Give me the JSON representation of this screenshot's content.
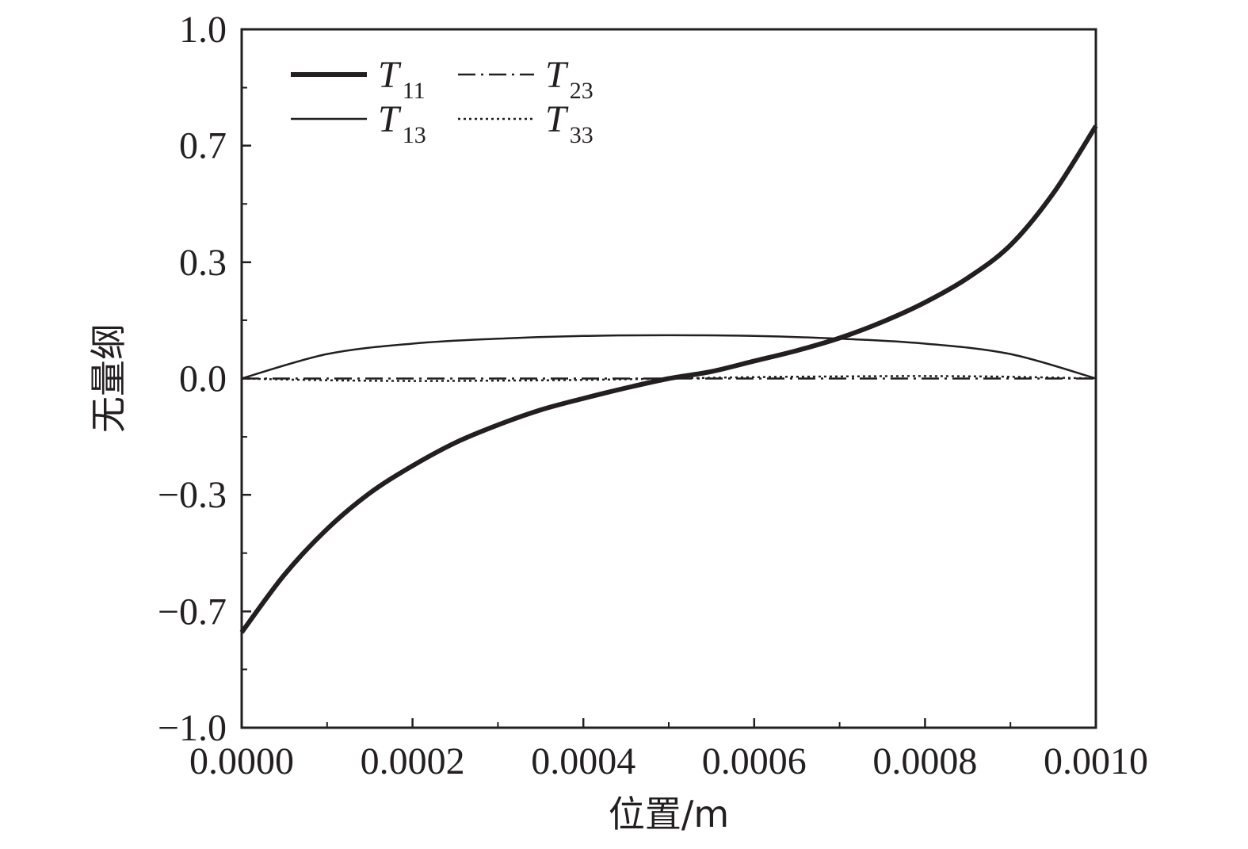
{
  "chart_data": {
    "type": "line",
    "xlabel": "位置/m",
    "ylabel": "无量纲",
    "xlim": [
      0,
      0.001
    ],
    "ylim": [
      -1.0,
      1.0
    ],
    "x_ticks": [
      0,
      0.0002,
      0.0004,
      0.0006,
      0.0008,
      0.001
    ],
    "x_tick_labels": [
      "0.0000",
      "0.0002",
      "0.0004",
      "0.0006",
      "0.0008",
      "0.0010"
    ],
    "x_minor_ticks": [
      0.0001,
      0.0003,
      0.0005,
      0.0007,
      0.0009
    ],
    "y_ticks": [
      1.0,
      0.7,
      0.3,
      0.0,
      -0.3,
      -0.7,
      -1.0
    ],
    "y_tick_labels": [
      "1.0",
      "0.7",
      "0.3",
      "0.0",
      "−0.3",
      "−0.7",
      "−1.0"
    ],
    "y_tick_values": [
      1.0,
      0.667,
      0.333,
      0.0,
      -0.333,
      -0.667,
      -1.0
    ],
    "y_minor_ticks": [
      0.833,
      0.5,
      0.167,
      -0.167,
      -0.5,
      -0.833
    ],
    "grid": false,
    "legend_position": "top-left",
    "series": [
      {
        "name": "T11",
        "legend_main": "T",
        "legend_sub": "11",
        "style": "thick-solid",
        "x": [
          0,
          5e-05,
          0.0001,
          0.00015,
          0.0002,
          0.00025,
          0.0003,
          0.00035,
          0.0004,
          0.00045,
          0.0005,
          0.00055,
          0.0006,
          0.00065,
          0.0007,
          0.00075,
          0.0008,
          0.00085,
          0.0009,
          0.00095,
          0.001
        ],
        "y": [
          -0.727,
          -0.562,
          -0.431,
          -0.328,
          -0.25,
          -0.184,
          -0.133,
          -0.09,
          -0.057,
          -0.027,
          0.0,
          0.02,
          0.05,
          0.08,
          0.116,
          0.162,
          0.218,
          0.288,
          0.382,
          0.53,
          0.723
        ]
      },
      {
        "name": "T13",
        "legend_main": "T",
        "legend_sub": "13",
        "style": "thin-solid",
        "x": [
          0,
          0.0001,
          0.0002,
          0.0003,
          0.0004,
          0.0005,
          0.0006,
          0.0007,
          0.0008,
          0.0009,
          0.001
        ],
        "y": [
          0.0,
          0.07,
          0.1,
          0.114,
          0.122,
          0.124,
          0.122,
          0.114,
          0.1,
          0.07,
          0.0
        ]
      },
      {
        "name": "T23",
        "legend_main": "T",
        "legend_sub": "23",
        "style": "dash-dot",
        "x": [
          0,
          0.00025,
          0.0005,
          0.00075,
          0.001
        ],
        "y": [
          0.0,
          0.0,
          0.0,
          0.0,
          0.0
        ]
      },
      {
        "name": "T33",
        "legend_main": "T",
        "legend_sub": "33",
        "style": "dotted",
        "x": [
          0,
          0.0001,
          0.0002,
          0.0003,
          0.0004,
          0.0005,
          0.0006,
          0.0007,
          0.0008,
          0.0009,
          0.001
        ],
        "y": [
          0.0,
          -0.005,
          -0.007,
          -0.006,
          -0.004,
          0.0,
          0.004,
          0.006,
          0.007,
          0.005,
          0.0
        ]
      }
    ]
  }
}
